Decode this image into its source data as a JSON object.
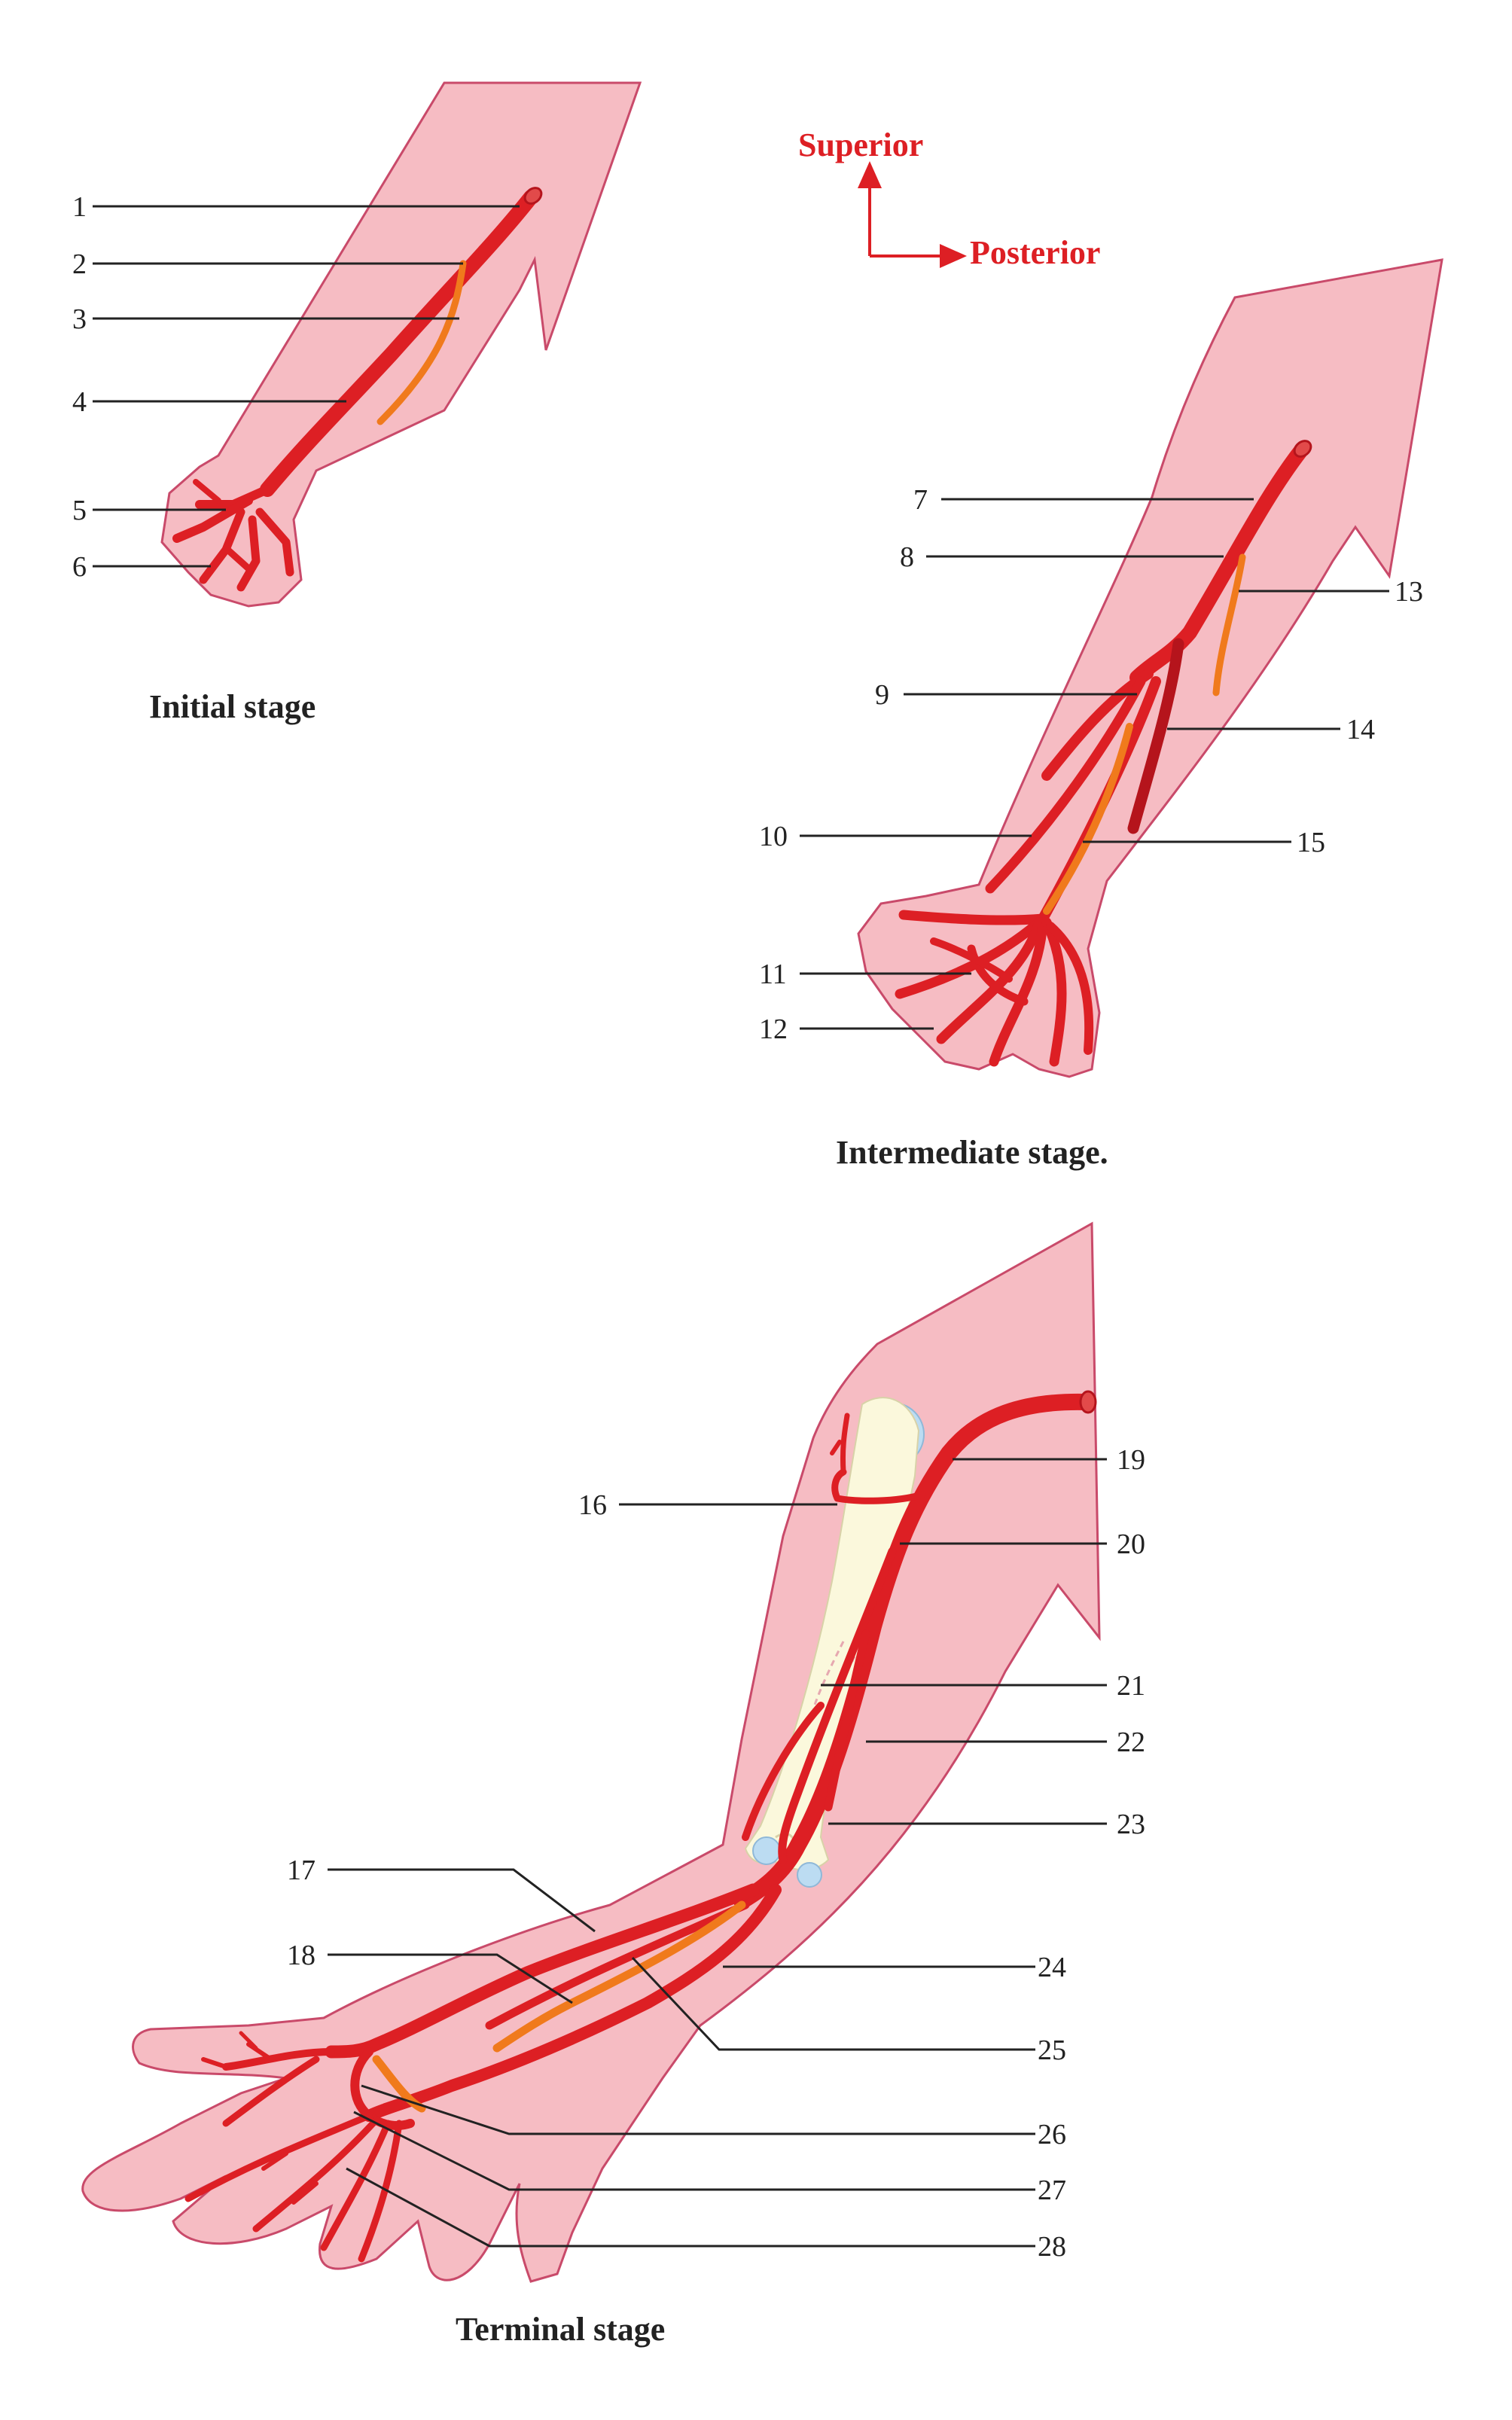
{
  "colors": {
    "skin": "#f6bcc3",
    "skin_outline": "#c94a6a",
    "artery": "#dd1f24",
    "artery_dark": "#b5141c",
    "vein_orange": "#f07a1c",
    "bone": "#fbf8dc",
    "cartilage": "#bcdcf2",
    "axis": "#dd1f24"
  },
  "orientation": {
    "superior": "Superior",
    "posterior": "Posterior"
  },
  "stages": {
    "initial": "Initial stage",
    "intermediate": "Intermediate stage.",
    "terminal": "Terminal stage"
  },
  "labels": {
    "l1": "1",
    "l2": "2",
    "l3": "3",
    "l4": "4",
    "l5": "5",
    "l6": "6",
    "l7": "7",
    "l8": "8",
    "l9": "9",
    "l10": "10",
    "l11": "11",
    "l12": "12",
    "l13": "13",
    "l14": "14",
    "l15": "15",
    "l16": "16",
    "l17": "17",
    "l18": "18",
    "l19": "19",
    "l20": "20",
    "l21": "21",
    "l22": "22",
    "l23": "23",
    "l24": "24",
    "l25": "25",
    "l26": "26",
    "l27": "27",
    "l28": "28"
  }
}
